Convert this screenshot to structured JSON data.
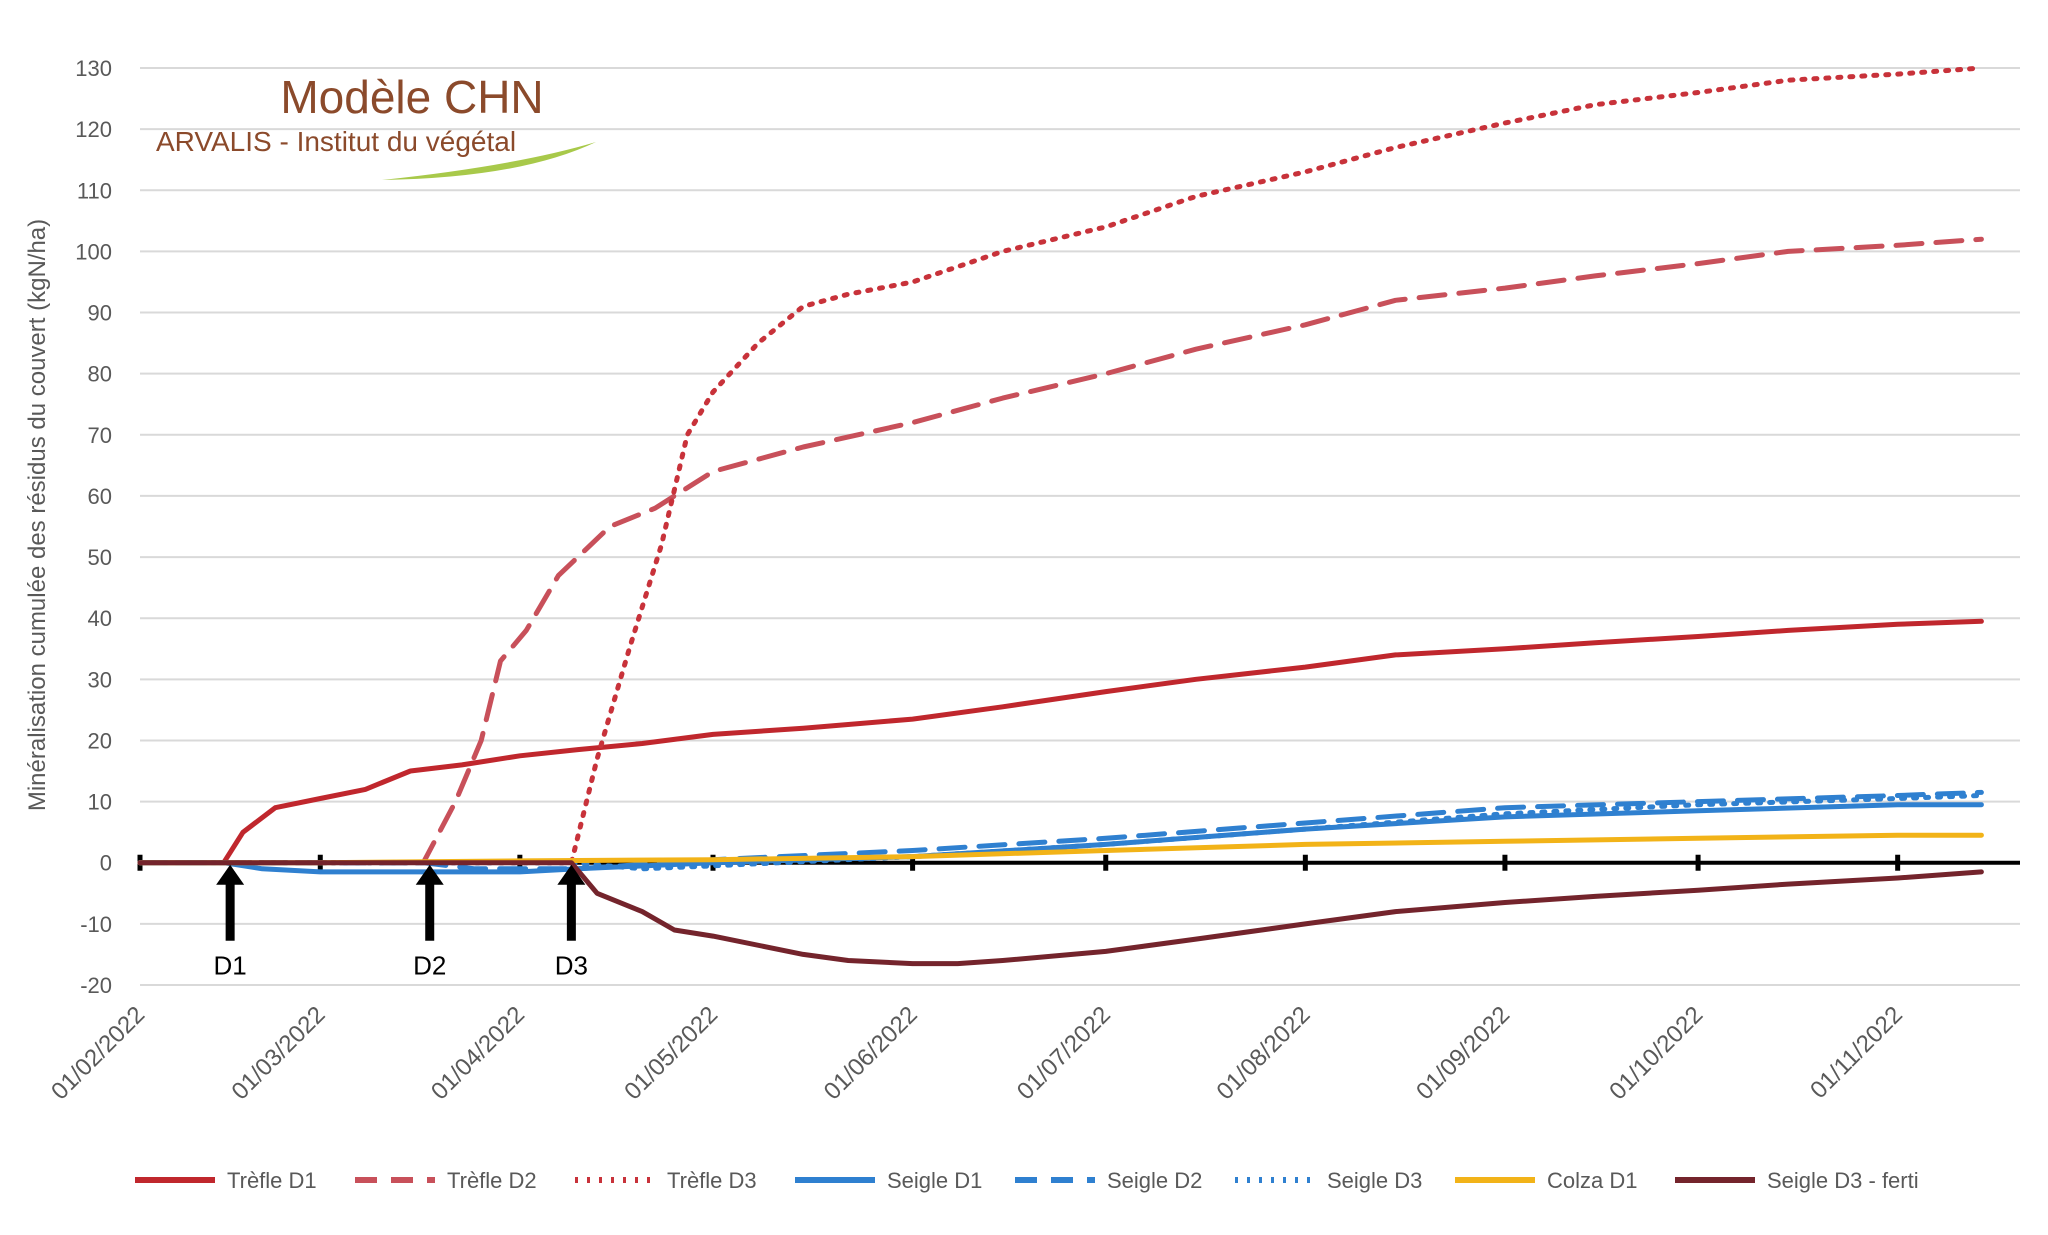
{
  "logo": {
    "title": "Modèle CHN",
    "subtitle": "ARVALIS - Institut du végétal",
    "accent_color": "#a8c94a"
  },
  "chart_data": {
    "type": "line",
    "title": "",
    "xlabel": "",
    "ylabel": "Minéralisation cumulée des résidus du couvert (kgN/ha)",
    "ylim": [
      -20,
      130
    ],
    "y_ticks": [
      -20,
      -10,
      0,
      10,
      20,
      30,
      40,
      50,
      60,
      70,
      80,
      90,
      100,
      110,
      120,
      130
    ],
    "x_range": [
      "2022-02-01",
      "2022-11-20"
    ],
    "x_tick_labels": [
      "01/02/2022",
      "01/03/2022",
      "01/04/2022",
      "01/05/2022",
      "01/06/2022",
      "01/07/2022",
      "01/08/2022",
      "01/09/2022",
      "01/10/2022",
      "01/11/2022"
    ],
    "x_tick_dates": [
      "2022-02-01",
      "2022-03-01",
      "2022-04-01",
      "2022-05-01",
      "2022-06-01",
      "2022-07-01",
      "2022-08-01",
      "2022-09-01",
      "2022-10-01",
      "2022-11-01"
    ],
    "grid": "horizontal",
    "legend_position": "bottom",
    "markers": [
      {
        "label": "D1",
        "date": "2022-02-15"
      },
      {
        "label": "D2",
        "date": "2022-03-18"
      },
      {
        "label": "D3",
        "date": "2022-04-09"
      }
    ],
    "series": [
      {
        "name": "Trèfle D1",
        "color": "#c0272d",
        "dash": "solid",
        "x": [
          "2022-02-01",
          "2022-02-14",
          "2022-02-17",
          "2022-02-22",
          "2022-03-01",
          "2022-03-08",
          "2022-03-15",
          "2022-03-23",
          "2022-04-01",
          "2022-04-10",
          "2022-04-20",
          "2022-05-01",
          "2022-05-15",
          "2022-06-01",
          "2022-06-15",
          "2022-07-01",
          "2022-07-15",
          "2022-08-01",
          "2022-08-15",
          "2022-09-01",
          "2022-09-15",
          "2022-10-01",
          "2022-10-15",
          "2022-11-01",
          "2022-11-14"
        ],
        "y": [
          0,
          0,
          5,
          9,
          10.5,
          12,
          15,
          16,
          17.5,
          18.5,
          19.5,
          21,
          22,
          23.5,
          25.5,
          28,
          30,
          32,
          34,
          35,
          36,
          37,
          38,
          39,
          39.5
        ]
      },
      {
        "name": "Trèfle D2",
        "color": "#c8505a",
        "dash": "dash",
        "x": [
          "2022-02-01",
          "2022-03-17",
          "2022-03-22",
          "2022-03-26",
          "2022-03-29",
          "2022-04-02",
          "2022-04-07",
          "2022-04-15",
          "2022-04-22",
          "2022-05-01",
          "2022-05-15",
          "2022-06-01",
          "2022-06-15",
          "2022-07-01",
          "2022-07-15",
          "2022-08-01",
          "2022-08-15",
          "2022-09-01",
          "2022-09-15",
          "2022-10-01",
          "2022-10-15",
          "2022-11-01",
          "2022-11-14"
        ],
        "y": [
          0,
          0,
          10,
          20,
          33,
          38,
          47,
          55,
          58,
          64,
          68,
          72,
          76,
          80,
          84,
          88,
          92,
          94,
          96,
          98,
          100,
          101,
          102
        ]
      },
      {
        "name": "Trèfle D3",
        "color": "#c8323a",
        "dash": "dot",
        "x": [
          "2022-02-01",
          "2022-04-09",
          "2022-04-13",
          "2022-04-18",
          "2022-04-23",
          "2022-04-27",
          "2022-05-01",
          "2022-05-08",
          "2022-05-15",
          "2022-05-22",
          "2022-06-01",
          "2022-06-15",
          "2022-07-01",
          "2022-07-15",
          "2022-08-01",
          "2022-08-15",
          "2022-09-01",
          "2022-09-15",
          "2022-10-01",
          "2022-10-15",
          "2022-11-01",
          "2022-11-14"
        ],
        "y": [
          0,
          0,
          17,
          35,
          52,
          70,
          77,
          85,
          91,
          93,
          95,
          100,
          104,
          109,
          113,
          117,
          121,
          124,
          126,
          128,
          129,
          130
        ]
      },
      {
        "name": "Seigle D1",
        "color": "#2f80d0",
        "dash": "solid",
        "x": [
          "2022-02-01",
          "2022-02-14",
          "2022-02-20",
          "2022-03-01",
          "2022-04-01",
          "2022-04-10",
          "2022-05-01",
          "2022-06-01",
          "2022-07-01",
          "2022-08-01",
          "2022-09-01",
          "2022-10-01",
          "2022-11-01",
          "2022-11-14"
        ],
        "y": [
          0,
          0,
          -1,
          -1.5,
          -1.5,
          -1,
          0,
          1,
          3,
          5.5,
          7.5,
          8.5,
          9.5,
          9.5
        ]
      },
      {
        "name": "Seigle D2",
        "color": "#2f80d0",
        "dash": "dash",
        "x": [
          "2022-02-01",
          "2022-03-17",
          "2022-03-25",
          "2022-04-10",
          "2022-05-01",
          "2022-06-01",
          "2022-07-01",
          "2022-08-01",
          "2022-09-01",
          "2022-10-01",
          "2022-11-01",
          "2022-11-14"
        ],
        "y": [
          0,
          0,
          -1,
          -1,
          0.5,
          2,
          4,
          6.5,
          9,
          10,
          11,
          11.5
        ]
      },
      {
        "name": "Seigle D3",
        "color": "#2f80d0",
        "dash": "dot",
        "x": [
          "2022-02-01",
          "2022-04-09",
          "2022-04-20",
          "2022-05-01",
          "2022-06-01",
          "2022-07-01",
          "2022-08-01",
          "2022-09-01",
          "2022-10-01",
          "2022-11-01",
          "2022-11-14"
        ],
        "y": [
          0,
          0,
          -1,
          -0.5,
          1,
          3,
          5.5,
          8,
          9.5,
          10.5,
          11
        ]
      },
      {
        "name": "Colza D1",
        "color": "#f2b318",
        "dash": "solid",
        "x": [
          "2022-02-01",
          "2022-02-14",
          "2022-03-01",
          "2022-04-01",
          "2022-05-01",
          "2022-06-01",
          "2022-07-01",
          "2022-08-01",
          "2022-09-01",
          "2022-10-01",
          "2022-11-01",
          "2022-11-14"
        ],
        "y": [
          0,
          0,
          0,
          0.3,
          0.5,
          1,
          2,
          3,
          3.5,
          4,
          4.5,
          4.5
        ]
      },
      {
        "name": "Seigle D3 - ferti",
        "color": "#74242c",
        "dash": "solid",
        "x": [
          "2022-02-01",
          "2022-04-09",
          "2022-04-13",
          "2022-04-20",
          "2022-04-25",
          "2022-05-01",
          "2022-05-15",
          "2022-05-22",
          "2022-06-01",
          "2022-06-08",
          "2022-06-15",
          "2022-07-01",
          "2022-07-15",
          "2022-08-01",
          "2022-08-15",
          "2022-09-01",
          "2022-09-15",
          "2022-10-01",
          "2022-10-15",
          "2022-11-01",
          "2022-11-14"
        ],
        "y": [
          0,
          0,
          -5,
          -8,
          -11,
          -12,
          -15,
          -16,
          -16.5,
          -16.5,
          -16,
          -14.5,
          -12.5,
          -10,
          -8,
          -6.5,
          -5.5,
          -4.5,
          -3.5,
          -2.5,
          -1.5
        ]
      }
    ]
  }
}
